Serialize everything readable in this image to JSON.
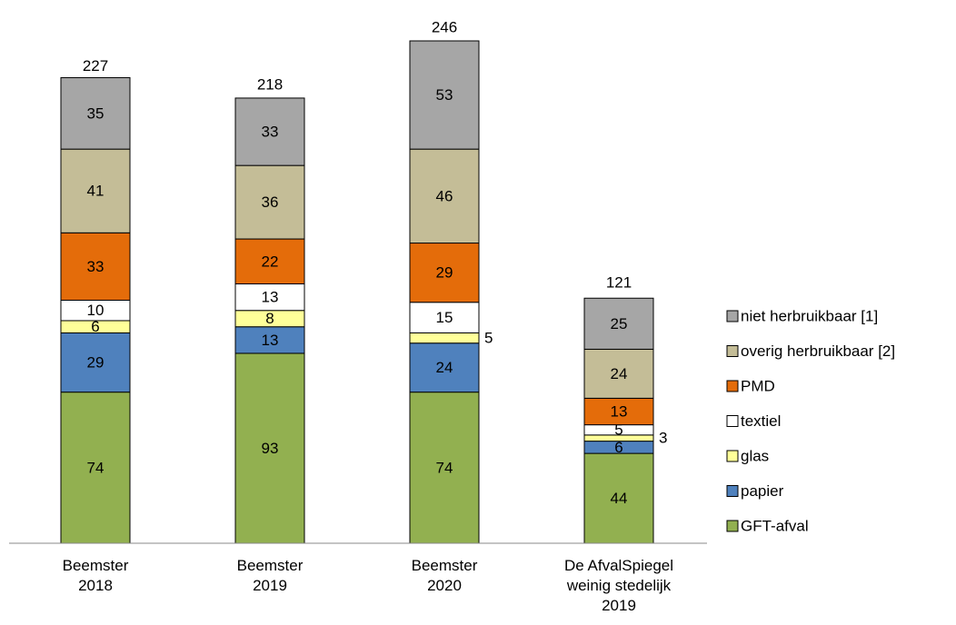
{
  "chart_data": {
    "type": "stacked_bar",
    "categories": [
      "Beemster\n2018",
      "Beemster\n2019",
      "Beemster\n2020",
      "De AfvalSpiegel\nweinig stedelijk\n2019"
    ],
    "series": [
      {
        "name": "GFT-afval",
        "color": "#92b050",
        "values": [
          74,
          93,
          74,
          44
        ]
      },
      {
        "name": "papier",
        "color": "#4f81bd",
        "values": [
          29,
          13,
          24,
          6
        ]
      },
      {
        "name": "glas",
        "color": "#ffff99",
        "values": [
          6,
          8,
          5,
          3
        ]
      },
      {
        "name": "textiel",
        "color": "#ffffff",
        "values": [
          10,
          13,
          15,
          5
        ]
      },
      {
        "name": "PMD",
        "color": "#e46c0a",
        "values": [
          33,
          22,
          29,
          13
        ]
      },
      {
        "name": "overig herbruikbaar [2]",
        "color": "#c4bd97",
        "values": [
          41,
          36,
          46,
          24
        ]
      },
      {
        "name": "niet herbruikbaar [1]",
        "color": "#a6a6a6",
        "values": [
          35,
          33,
          53,
          25
        ]
      }
    ],
    "totals": [
      227,
      218,
      246,
      121
    ],
    "legend": "right"
  }
}
